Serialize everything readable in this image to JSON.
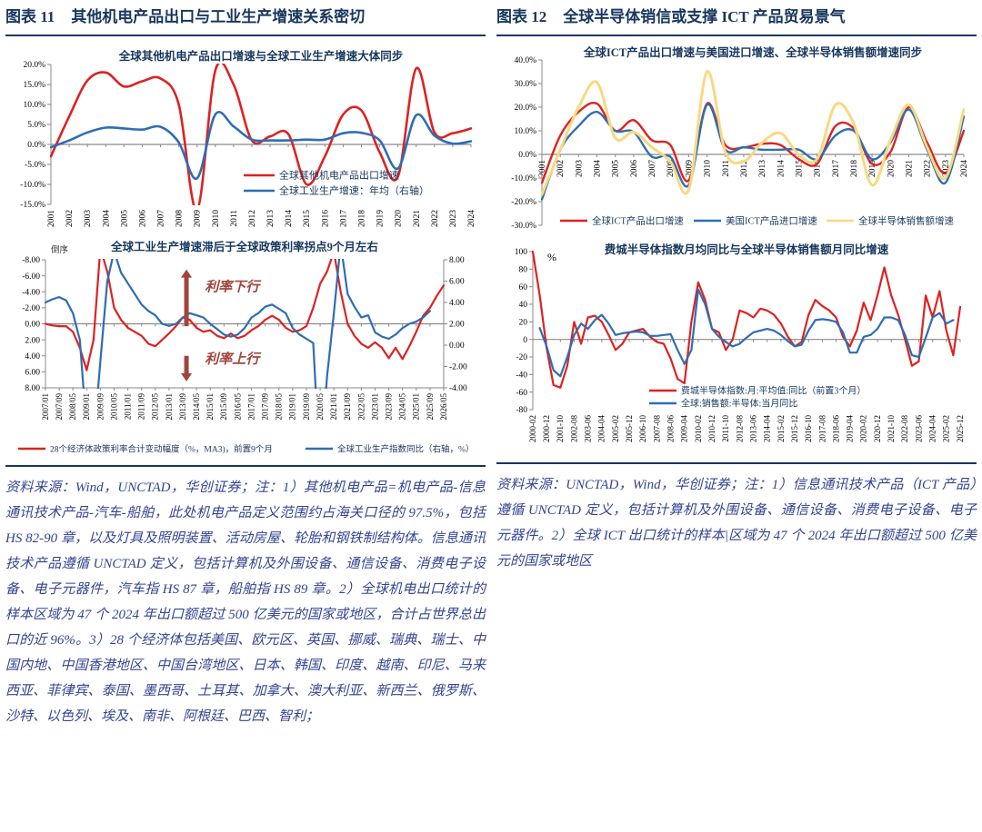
{
  "colors": {
    "navy": "#17375E",
    "note": "#334593",
    "red": "#DD2221",
    "blue": "#2E6DB4",
    "yellow": "#F8D980",
    "annotation_red": "#A0453B",
    "axis_gray": "#8A8A8A"
  },
  "left_panel": {
    "header": {
      "tag": "图表 11",
      "title": "其他机电产品出口与工业生产增速关系密切"
    },
    "note": "资料来源：Wind，UNCTAD，华创证券；注：1）其他机电产品=机电产品-信息通讯技术产品-汽车-船舶，此处机电产品定义范围约占海关口径的 97.5%，包括 HS 82-90 章，以及灯具及照明装置、活动房屋、轮胎和钢铁制结构体。信息通讯技术产品遵循 UNCTAD 定义，包括计算机及外围设备、通信设备、消费电子设备、电子元器件，汽车指 HS 87 章，船舶指 HS 89 章。2）全球机电出口统计的样本区域为 47 个 2024 年出口额超过 500 亿美元的国家或地区，合计占世界总出口的近 96%。3）28 个经济体包括美国、欧元区、英国、挪威、瑞典、瑞士、中国内地、中国香港地区、中国台湾地区、日本、韩国、印度、越南、印尼、马来西亚、菲律宾、泰国、墨西哥、土耳其、加拿大、澳大利亚、新西兰、俄罗斯、沙特、以色列、埃及、南非、阿根廷、巴西、智利；"
  },
  "right_panel": {
    "header": {
      "tag": "图表 12",
      "title": "全球半导体销信或支撑 ICT 产品贸易景气"
    },
    "note": "资料来源：UNCTAD，Wind，华创证券；注：1）信息通讯技术产品（ICT 产品）遵循 UNCTAD 定义，包括计算机及外围设备、通信设备、消费电子设备、电子元器件。2）全球 ICT 出口统计的样本|区域为 47 个 2024 年出口额超过 500 亿美元的国家或地区"
  },
  "chart_data": [
    {
      "id": "chart-a",
      "type": "line",
      "smooth": true,
      "title": "全球其他机电产品出口增速与全球工业生产增速大体同步",
      "size": [
        522,
        202
      ],
      "margins": {
        "l": 50,
        "r": 10,
        "t": 17,
        "b": 31
      },
      "ylim": [
        -15,
        20
      ],
      "yticks": [
        {
          "v": 20,
          "t": "20.0%"
        },
        {
          "v": 15,
          "t": "15.0%"
        },
        {
          "v": 10,
          "t": "10.0%"
        },
        {
          "v": 5,
          "t": "5.0%"
        },
        {
          "v": 0,
          "t": "0.0%"
        },
        {
          "v": -5,
          "t": "-5.0%"
        },
        {
          "v": -10,
          "t": "-10.0%"
        },
        {
          "v": -15,
          "t": "-15.0%"
        }
      ],
      "x_labels": [
        "2001",
        "2002",
        "2003",
        "2004",
        "2005",
        "2006",
        "2007",
        "2008",
        "2009",
        "2010",
        "2011",
        "2012",
        "2013",
        "2014",
        "2015",
        "2016",
        "2017",
        "2018",
        "2019",
        "2020",
        "2021",
        "2022",
        "2023",
        "2024"
      ],
      "x_label_mode": "bottom",
      "x_label_size": 9.5,
      "zero_ticks": true,
      "series": [
        {
          "name": "全球其他机电产品出口增速",
          "color": "#DD2221",
          "width": 2.6,
          "axis": "left",
          "values": [
            -3,
            7,
            16,
            18,
            14.5,
            15.8,
            16.5,
            10,
            -16.5,
            18.5,
            15,
            1,
            2,
            2.6,
            -10,
            -3,
            7.5,
            8.5,
            -2,
            -8,
            19,
            3,
            2.8,
            4
          ]
        },
        {
          "name": "全球工业生产增速：年均（右轴）",
          "color": "#2E6DB4",
          "width": 2.6,
          "axis": "left",
          "values": [
            -0.7,
            1,
            3,
            4.2,
            4,
            3.7,
            4.4,
            0.5,
            -8.5,
            7.5,
            4.5,
            1.2,
            1,
            1,
            1.2,
            1.2,
            2.8,
            2.9,
            1,
            -6,
            7.3,
            2.2,
            0.2,
            0.8
          ]
        }
      ],
      "legend": {
        "swatch": 34,
        "size": 11,
        "items": [
          {
            "x": 262,
            "y": 139
          },
          {
            "x": 262,
            "y": 156
          }
        ]
      }
    },
    {
      "id": "chart-b",
      "type": "line",
      "smooth": false,
      "title": "全球工业生产增速滞后于全球政策利率拐点9个月左右",
      "size": [
        522,
        246
      ],
      "margins": {
        "l": 44,
        "r": 40,
        "t": 22,
        "b": 83
      },
      "ylim": [
        -8,
        8
      ],
      "invert_left": true,
      "yticks": [
        {
          "v": -8,
          "t": "-8.00"
        },
        {
          "v": -6,
          "t": "-6.00"
        },
        {
          "v": -4,
          "t": "-4.00"
        },
        {
          "v": -2,
          "t": "-2.00"
        },
        {
          "v": 0,
          "t": "0.00"
        },
        {
          "v": 2,
          "t": "2.00"
        },
        {
          "v": 4,
          "t": "4.00"
        },
        {
          "v": 6,
          "t": "6.00"
        },
        {
          "v": 8,
          "t": "8.00"
        }
      ],
      "right": {
        "ylim": [
          -4,
          8
        ],
        "yticks": [
          {
            "v": 8,
            "t": "8.00"
          },
          {
            "v": 6,
            "t": "6.00"
          },
          {
            "v": 4,
            "t": "4.00"
          },
          {
            "v": 2,
            "t": "2.00"
          },
          {
            "v": 0,
            "t": "0.00"
          },
          {
            "v": -2,
            "t": "-2.00"
          },
          {
            "v": -4,
            "t": "-4.00"
          }
        ]
      },
      "x_labels": [
        "2007/01",
        "2007/09",
        "2008/05",
        "2009/01",
        "2009/09",
        "2010/05",
        "2011/01",
        "2011/09",
        "2012/05",
        "2013/01",
        "2013/09",
        "2014/05",
        "2015/01",
        "2015/09",
        "2016/05",
        "2017/01",
        "2017/09",
        "2018/05",
        "2019/01",
        "2019/09",
        "2020/05",
        "2021/01",
        "2021/09",
        "2022/05",
        "2023/01",
        "2023/09",
        "2024/05",
        "2025/01",
        "2025/09",
        "2026/05"
      ],
      "x_label_mode": "bottom",
      "x_label_size": 9,
      "zero_ticks": true,
      "bottom_axis": true,
      "series": [
        {
          "name": "28个经济体政策利率合计变动幅度（%，MA3)，前置9个月",
          "color": "#DD2221",
          "width": 2.2,
          "axis": "left",
          "values": [
            0.0,
            0.2,
            0.3,
            0.3,
            1.0,
            3.0,
            5.8,
            2.0,
            -9.5,
            -6.5,
            -2.0,
            -0.5,
            0.5,
            1.0,
            1.5,
            2.5,
            2.8,
            2.0,
            1.2,
            0.3,
            -0.8,
            -0.5,
            0.5,
            1.0,
            0.8,
            1.5,
            1.8,
            1.2,
            1.8,
            1.5,
            0.8,
            0.3,
            -0.5,
            -1.0,
            -0.5,
            0.5,
            1.0,
            0.8,
            0.3,
            -2.0,
            -5.0,
            -6.5,
            -9.0,
            -4.0,
            0.0,
            1.5,
            2.5,
            3.0,
            2.3,
            3.0,
            4.3,
            3.0,
            4.4,
            2.8,
            1.0,
            -1.0,
            -2.0,
            -3.5,
            -4.8
          ]
        },
        {
          "name": "全球工业生产指数同比（右轴，%）",
          "color": "#2E6DB4",
          "width": 2.2,
          "axis": "right",
          "values": [
            4.0,
            4.3,
            4.5,
            4.2,
            3.0,
            0.5,
            -8.0,
            -9.0,
            -1.5,
            6.0,
            8.8,
            6.8,
            5.8,
            4.8,
            3.8,
            3.2,
            2.8,
            2.0,
            1.8,
            2.0,
            2.6,
            3.0,
            2.8,
            2.6,
            2.0,
            1.5,
            1.0,
            0.8,
            1.0,
            1.6,
            2.6,
            3.0,
            3.6,
            3.8,
            3.4,
            3.0,
            1.6,
            1.0,
            0.6,
            0.2,
            -12.0,
            -3.0,
            3.0,
            9.5,
            4.8,
            3.6,
            2.6,
            2.8,
            1.2,
            0.8,
            0.6,
            1.0,
            1.6,
            2.0,
            2.2,
            2.6,
            3.2,
            null,
            null
          ]
        }
      ],
      "legend": {
        "swatch": 30,
        "size": 9.5,
        "items": [
          {
            "x": 14,
            "y": 230
          },
          {
            "x": 330,
            "y": 230
          }
        ]
      },
      "annotations": [
        {
          "type": "text",
          "text": "倒序",
          "ax": 50,
          "ay": 14,
          "size": 9.5,
          "color": "#333333"
        },
        {
          "type": "arrow",
          "xf": 0.354,
          "v_from": 0.3,
          "v_to": -6.8,
          "color": "#A0453B"
        },
        {
          "type": "text",
          "text": "利率下行",
          "xf": 0.4,
          "v": -4.1,
          "size": 15,
          "bold": true,
          "italic": true,
          "color": "#A0453B"
        },
        {
          "type": "arrow",
          "xf": 0.354,
          "v_from": 4.0,
          "v_to": 7.2,
          "color": "#A0453B"
        },
        {
          "type": "text",
          "text": "利率上行",
          "xf": 0.4,
          "v": 4.95,
          "size": 15,
          "bold": true,
          "italic": true,
          "color": "#A0453B"
        }
      ]
    },
    {
      "id": "chart-c",
      "type": "line",
      "smooth": true,
      "title": "全球ICT产品出口增速与美国进口增速、全球半导体销售额增速同步",
      "size": [
        522,
        213
      ],
      "margins": {
        "l": 50,
        "r": 8,
        "t": 16,
        "b": 15
      },
      "ylim": [
        -30,
        40
      ],
      "yticks": [
        {
          "v": 40,
          "t": "40.0%"
        },
        {
          "v": 30,
          "t": "30.0%"
        },
        {
          "v": 20,
          "t": "20.0%"
        },
        {
          "v": 10,
          "t": "10.0%"
        },
        {
          "v": 0,
          "t": "0.0%"
        },
        {
          "v": -10,
          "t": "-10.0%"
        },
        {
          "v": -20,
          "t": "-20.0%"
        },
        {
          "v": -30,
          "t": "-30.0%"
        }
      ],
      "x_labels": [
        "2001",
        "2002",
        "2003",
        "2004",
        "2005",
        "2006",
        "2007",
        "2008",
        "2009",
        "2010",
        "2011",
        "2012",
        "2013",
        "2014",
        "2015",
        "2016",
        "2017",
        "2018",
        "2019",
        "2020",
        "2021",
        "2022",
        "2023",
        "2024"
      ],
      "x_label_mode": "zero",
      "x_label_size": 9.5,
      "zero_ticks": true,
      "series": [
        {
          "name": "全球ICT产品出口增速",
          "color": "#DD2221",
          "width": 2.4,
          "axis": "left",
          "values": [
            -12,
            8,
            18,
            21.5,
            10,
            14.5,
            6,
            4,
            -11,
            21.5,
            4,
            3,
            4.5,
            4,
            -2,
            -4,
            12,
            11,
            -4,
            1,
            20,
            5,
            -8,
            10
          ]
        },
        {
          "name": "美国ICT产品进口增速",
          "color": "#2E6DB4",
          "width": 2.4,
          "axis": "left",
          "values": [
            -19,
            2,
            12,
            18,
            10,
            9.5,
            -1,
            -1,
            -13,
            21,
            2,
            3,
            2,
            2,
            2,
            -2,
            8,
            10,
            -2,
            5,
            19,
            2,
            -12,
            16
          ]
        },
        {
          "name": "全球半导体销售额增速",
          "color": "#F8D980",
          "width": 3.0,
          "axis": "left",
          "values": [
            -17,
            2,
            20,
            30.5,
            7,
            9.5,
            3,
            -3,
            -15,
            35,
            1,
            -3,
            5,
            9,
            0,
            -2,
            21,
            13,
            -13,
            6,
            21,
            3,
            -10,
            19
          ]
        }
      ],
      "legend": {
        "swatch": 30,
        "size": 10.5,
        "items": [
          {
            "x": 70,
            "y": 193
          },
          {
            "x": 217,
            "y": 193
          },
          {
            "x": 363,
            "y": 193
          }
        ]
      }
    },
    {
      "id": "chart-d",
      "type": "line",
      "smooth": false,
      "title": "费城半导体指数月均同比与全球半导体销售额月同比增速",
      "size": [
        522,
        240
      ],
      "margins": {
        "l": 40,
        "r": 12,
        "t": 10,
        "b": 56
      },
      "ylim": [
        -80,
        100
      ],
      "yticks": [
        {
          "v": 100,
          "t": "100"
        },
        {
          "v": 80,
          "t": "80"
        },
        {
          "v": 60,
          "t": "60"
        },
        {
          "v": 40,
          "t": "40"
        },
        {
          "v": 20,
          "t": "20"
        },
        {
          "v": 0,
          "t": "0"
        },
        {
          "v": -20,
          "t": "-20"
        },
        {
          "v": -40,
          "t": "-40"
        },
        {
          "v": -60,
          "t": "-60"
        },
        {
          "v": -80,
          "t": "-80"
        }
      ],
      "x_labels": [
        "2000-02",
        "2000-12",
        "2001-10",
        "2002-08",
        "2003-06",
        "2004-04",
        "2005-02",
        "2005-12",
        "2006-10",
        "2007-08",
        "2008-06",
        "2009-04",
        "2010-02",
        "2010-12",
        "2011-10",
        "2012-08",
        "2013-06",
        "2014-04",
        "2015-02",
        "2015-12",
        "2016-10",
        "2017-08",
        "2018-06",
        "2019-04",
        "2020-02",
        "2020-12",
        "2021-10",
        "2022-08",
        "2023-06",
        "2024-04",
        "2025-02",
        "2025-12"
      ],
      "x_label_mode": "bottom",
      "x_label_size": 9,
      "zero_ticks": true,
      "series": [
        {
          "name": "费城半导体指数:月:平均值:同比（前置3个月）",
          "color": "#DD2221",
          "width": 2.2,
          "axis": "left",
          "values": [
            100,
            50,
            -10,
            -52,
            -55,
            -30,
            20,
            -5,
            25,
            27,
            20,
            5,
            -12,
            -5,
            8,
            10,
            12,
            3,
            -3,
            -5,
            -22,
            -45,
            -50,
            20,
            65,
            45,
            12,
            8,
            -12,
            0,
            33,
            30,
            25,
            35,
            33,
            28,
            18,
            3,
            -8,
            -3,
            28,
            45,
            38,
            33,
            25,
            3,
            -8,
            10,
            42,
            22,
            50,
            82,
            50,
            28,
            0,
            -30,
            -25,
            50,
            25,
            55,
            10,
            -18,
            37
          ]
        },
        {
          "name": "全球:销售额:半导体:当月同比",
          "color": "#2E6DB4",
          "width": 2.2,
          "axis": "left",
          "values": [
            null,
            13,
            -8,
            -35,
            -42,
            -20,
            5,
            18,
            12,
            22,
            28,
            18,
            5,
            7,
            8,
            9,
            8,
            4,
            4,
            5,
            6,
            -12,
            -28,
            -12,
            57,
            40,
            12,
            3,
            -3,
            -8,
            -5,
            2,
            8,
            10,
            12,
            10,
            5,
            -2,
            -8,
            -6,
            10,
            22,
            23,
            22,
            20,
            8,
            -15,
            -15,
            3,
            5,
            12,
            25,
            25,
            22,
            5,
            -18,
            -20,
            2,
            25,
            30,
            18,
            22,
            null
          ]
        }
      ],
      "legend": {
        "swatch": 30,
        "size": 10,
        "items": [
          {
            "x": 168,
            "y": 163
          },
          {
            "x": 168,
            "y": 177
          }
        ]
      },
      "annotations": [
        {
          "type": "text",
          "text": "%",
          "ax": 56,
          "ay": 20,
          "size": 12,
          "color": "#000000"
        }
      ]
    }
  ]
}
